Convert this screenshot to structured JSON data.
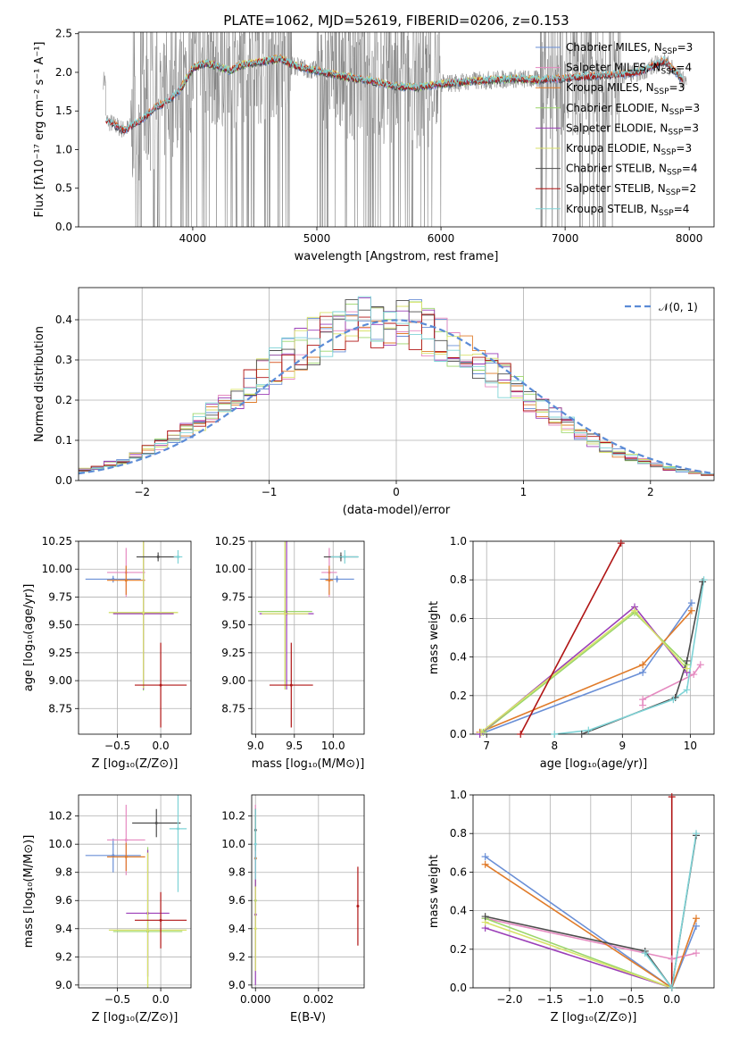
{
  "title": "PLATE=1062, MJD=52619, FIBERID=0206, z=0.153",
  "colors": {
    "Chabrier MILES": "#6a8fd6",
    "Salpeter MILES": "#e58ac0",
    "Kroupa MILES": "#e07b2a",
    "Chabrier ELODIE": "#9bd66a",
    "Salpeter ELODIE": "#9b3fb8",
    "Kroupa ELODIE": "#d8e26a",
    "Chabrier STELIB": "#4d4d4d",
    "Salpeter STELIB": "#b01515",
    "Kroupa STELIB": "#7ed3d6",
    "data": "#808080",
    "normal": "#5b8bd6"
  },
  "legend_models": [
    {
      "label": "Chabrier MILES, N",
      "sub": "SSP",
      "suffix": "=3"
    },
    {
      "label": "Salpeter MILES, N",
      "sub": "SSP",
      "suffix": "=4"
    },
    {
      "label": "Kroupa MILES, N",
      "sub": "SSP",
      "suffix": "=3"
    },
    {
      "label": "Chabrier ELODIE, N",
      "sub": "SSP",
      "suffix": "=3"
    },
    {
      "label": "Salpeter ELODIE, N",
      "sub": "SSP",
      "suffix": "=3"
    },
    {
      "label": "Kroupa ELODIE, N",
      "sub": "SSP",
      "suffix": "=3"
    },
    {
      "label": "Chabrier STELIB, N",
      "sub": "SSP",
      "suffix": "=4"
    },
    {
      "label": "Salpeter STELIB, N",
      "sub": "SSP",
      "suffix": "=2"
    },
    {
      "label": "Kroupa STELIB, N",
      "sub": "SSP",
      "suffix": "=4"
    }
  ],
  "chart_data": [
    {
      "type": "line",
      "panel": "spectrum",
      "xlabel": "wavelength [Angstrom, rest frame]",
      "ylabel": "Flux [fλ10⁻¹⁷ erg cm⁻² s⁻¹ A⁻¹]",
      "xlim": [
        3080,
        8200
      ],
      "ylim": [
        0,
        2.52
      ],
      "xticks": [
        4000,
        5000,
        6000,
        7000,
        8000
      ],
      "yticks": [
        0.0,
        0.5,
        1.0,
        1.5,
        2.0,
        2.5
      ],
      "model_curve": {
        "x": [
          3300,
          3450,
          3600,
          3700,
          3800,
          3900,
          4000,
          4100,
          4200,
          4300,
          4400,
          4500,
          4600,
          4700,
          4800,
          4900,
          5000,
          5200,
          5400,
          5600,
          5800,
          6000,
          6200,
          6400,
          6600,
          6800,
          7000,
          7200,
          7400,
          7600,
          7800,
          7950
        ],
        "y": [
          1.38,
          1.25,
          1.4,
          1.55,
          1.62,
          1.78,
          2.05,
          2.12,
          2.08,
          2.02,
          2.1,
          2.12,
          2.15,
          2.18,
          2.1,
          2.05,
          2.02,
          1.95,
          1.9,
          1.83,
          1.8,
          1.85,
          1.88,
          1.9,
          1.92,
          1.9,
          1.92,
          1.95,
          1.97,
          2.0,
          2.15,
          1.9
        ]
      }
    },
    {
      "type": "line",
      "panel": "residuals",
      "xlabel": "(data-model)/error",
      "ylabel": "Normed distribution",
      "legend": "𝒩(0, 1)",
      "xlim": [
        -2.5,
        2.5
      ],
      "ylim": [
        0,
        0.48
      ],
      "xticks": [
        -2,
        -1,
        0,
        1,
        2
      ],
      "yticks": [
        0.0,
        0.1,
        0.2,
        0.3,
        0.4
      ],
      "bin_width": 0.1
    },
    {
      "type": "scatter",
      "panel": "age-vs-Z",
      "xlabel": "Z [log₁₀(Z/Z⊙)]",
      "ylabel": "age  [log₁₀(age/yr)]",
      "xlim": [
        -0.95,
        0.35
      ],
      "ylim": [
        8.52,
        10.25
      ],
      "xticks": [
        -0.5,
        0.0
      ],
      "yticks": [
        8.75,
        9.0,
        9.25,
        9.5,
        9.75,
        10.0,
        10.25
      ],
      "points": [
        {
          "model": "Chabrier MILES",
          "x": -0.55,
          "xerr": 0.32,
          "y": 9.91,
          "yerr": 0.03
        },
        {
          "model": "Salpeter MILES",
          "x": -0.4,
          "xerr": 0.22,
          "y": 9.97,
          "yerr": 0.22
        },
        {
          "model": "Kroupa MILES",
          "x": -0.4,
          "xerr": 0.22,
          "y": 9.9,
          "yerr": 0.13
        },
        {
          "model": "Chabrier ELODIE",
          "x": -0.2,
          "xerr": 0.4,
          "y": 9.61,
          "yerr": 0.7
        },
        {
          "model": "Salpeter ELODIE",
          "x": -0.2,
          "xerr": 0.35,
          "y": 9.6,
          "yerr": 0.68
        },
        {
          "model": "Kroupa ELODIE",
          "x": -0.2,
          "xerr": 0.4,
          "y": 9.61,
          "yerr": 0.68
        },
        {
          "model": "Chabrier STELIB",
          "x": -0.03,
          "xerr": 0.25,
          "y": 10.11,
          "yerr": 0.04
        },
        {
          "model": "Salpeter STELIB",
          "x": 0.0,
          "xerr": 0.3,
          "y": 8.96,
          "yerr": 0.38
        },
        {
          "model": "Kroupa STELIB",
          "x": 0.2,
          "xerr": 0.05,
          "y": 10.11,
          "yerr": 0.06
        }
      ]
    },
    {
      "type": "scatter",
      "panel": "age-vs-mass",
      "xlabel": "mass [log₁₀(M/M⊙)]",
      "xlim": [
        8.95,
        10.4
      ],
      "ylim": [
        8.52,
        10.25
      ],
      "xticks": [
        9.0,
        9.5,
        10.0
      ],
      "yticks": [
        8.75,
        9.0,
        9.25,
        9.5,
        9.75,
        10.0,
        10.25
      ],
      "points": [
        {
          "model": "Chabrier MILES",
          "x": 10.05,
          "xerr": 0.22,
          "y": 9.91,
          "yerr": 0.03
        },
        {
          "model": "Salpeter MILES",
          "x": 9.95,
          "xerr": 0.1,
          "y": 9.97,
          "yerr": 0.22
        },
        {
          "model": "Kroupa MILES",
          "x": 9.95,
          "xerr": 0.05,
          "y": 9.9,
          "yerr": 0.13
        },
        {
          "model": "Chabrier ELODIE",
          "x": 9.38,
          "xerr": 0.35,
          "y": 9.62,
          "yerr": 0.7
        },
        {
          "model": "Salpeter ELODIE",
          "x": 9.4,
          "xerr": 0.35,
          "y": 9.6,
          "yerr": 0.68
        },
        {
          "model": "Kroupa ELODIE",
          "x": 9.38,
          "xerr": 0.3,
          "y": 9.6,
          "yerr": 0.68
        },
        {
          "model": "Chabrier STELIB",
          "x": 10.1,
          "xerr": 0.22,
          "y": 10.11,
          "yerr": 0.04
        },
        {
          "model": "Salpeter STELIB",
          "x": 9.46,
          "xerr": 0.28,
          "y": 8.96,
          "yerr": 0.38
        },
        {
          "model": "Kroupa STELIB",
          "x": 10.15,
          "xerr": 0.18,
          "y": 10.11,
          "yerr": 0.06
        }
      ]
    },
    {
      "type": "line",
      "panel": "mass-weight-vs-age",
      "xlabel": "age  [log₁₀(age/yr)]",
      "ylabel": "mass weight",
      "xlim": [
        6.8,
        10.35
      ],
      "ylim": [
        0,
        1.0
      ],
      "xticks": [
        7,
        8,
        9,
        10
      ],
      "yticks": [
        0.0,
        0.2,
        0.4,
        0.6,
        0.8,
        1.0
      ],
      "series": [
        {
          "model": "Chabrier MILES",
          "x": [
            6.9,
            9.3,
            10.02
          ],
          "y": [
            0.0,
            0.32,
            0.68
          ]
        },
        {
          "model": "Salpeter MILES",
          "x": [
            9.3,
            9.3,
            10.05,
            10.15
          ],
          "y": [
            0.15,
            0.18,
            0.31,
            0.36
          ]
        },
        {
          "model": "Kroupa MILES",
          "x": [
            6.9,
            9.3,
            10.02
          ],
          "y": [
            0.01,
            0.36,
            0.64
          ]
        },
        {
          "model": "Chabrier ELODIE",
          "x": [
            6.95,
            9.18,
            9.95
          ],
          "y": [
            0.01,
            0.63,
            0.36
          ]
        },
        {
          "model": "Salpeter ELODIE",
          "x": [
            6.9,
            9.18,
            9.95
          ],
          "y": [
            0.0,
            0.66,
            0.32
          ]
        },
        {
          "model": "Kroupa ELODIE",
          "x": [
            6.92,
            9.18,
            9.95
          ],
          "y": [
            0.01,
            0.64,
            0.34
          ]
        },
        {
          "model": "Chabrier STELIB",
          "x": [
            8.4,
            9.78,
            9.95,
            10.18
          ],
          "y": [
            0.0,
            0.19,
            0.38,
            0.79
          ]
        },
        {
          "model": "Salpeter STELIB",
          "x": [
            7.5,
            8.98
          ],
          "y": [
            0.0,
            0.99
          ]
        },
        {
          "model": "Kroupa STELIB",
          "x": [
            8.0,
            8.5,
            9.75,
            9.95,
            10.2
          ],
          "y": [
            0.0,
            0.02,
            0.18,
            0.23,
            0.8
          ]
        }
      ]
    },
    {
      "type": "scatter",
      "panel": "mass-vs-Z",
      "xlabel": "Z [log₁₀(Z/Z⊙)]",
      "ylabel": "mass [log₁₀(M/M⊙)]",
      "xlim": [
        -0.95,
        0.35
      ],
      "ylim": [
        8.98,
        10.35
      ],
      "xticks": [
        -0.5,
        0.0
      ],
      "yticks": [
        9.0,
        9.2,
        9.4,
        9.6,
        9.8,
        10.0,
        10.2
      ],
      "points": [
        {
          "model": "Chabrier MILES",
          "x": -0.55,
          "xerr": 0.32,
          "y": 9.92,
          "yerr": 0.12
        },
        {
          "model": "Salpeter MILES",
          "x": -0.4,
          "xerr": 0.22,
          "y": 10.03,
          "yerr": 0.25
        },
        {
          "model": "Kroupa MILES",
          "x": -0.4,
          "xerr": 0.22,
          "y": 9.91,
          "yerr": 0.1
        },
        {
          "model": "Chabrier ELODIE",
          "x": -0.15,
          "xerr": 0.4,
          "y": 9.38,
          "yerr": 0.6
        },
        {
          "model": "Salpeter ELODIE",
          "x": -0.15,
          "xerr": 0.25,
          "y": 9.51,
          "yerr": 0.45
        },
        {
          "model": "Kroupa ELODIE",
          "x": -0.15,
          "xerr": 0.45,
          "y": 9.39,
          "yerr": 0.55
        },
        {
          "model": "Chabrier STELIB",
          "x": -0.05,
          "xerr": 0.28,
          "y": 10.15,
          "yerr": 0.1
        },
        {
          "model": "Salpeter STELIB",
          "x": 0.0,
          "xerr": 0.3,
          "y": 9.46,
          "yerr": 0.2
        },
        {
          "model": "Kroupa STELIB",
          "x": 0.2,
          "xerr": 0.1,
          "y": 10.11,
          "yerr": 0.45
        }
      ]
    },
    {
      "type": "scatter",
      "panel": "mass-vs-EBV",
      "xlabel": "E(B-V)",
      "xlim": [
        -0.00012,
        0.00345
      ],
      "ylim": [
        8.98,
        10.35
      ],
      "xticks": [
        0.0,
        0.002
      ],
      "yticks": [
        9.0,
        9.2,
        9.4,
        9.6,
        9.8,
        10.0,
        10.2
      ],
      "points": [
        {
          "model": "Chabrier MILES",
          "x": 0.0,
          "y": 9.9,
          "yerr": 0.35
        },
        {
          "model": "Salpeter MILES",
          "x": 0.0,
          "y": 10.0,
          "yerr": 0.28
        },
        {
          "model": "Kroupa MILES",
          "x": 0.0,
          "y": 9.9,
          "yerr": 0.3
        },
        {
          "model": "Chabrier ELODIE",
          "x": 0.0,
          "y": 9.6,
          "yerr": 0.5
        },
        {
          "model": "Salpeter ELODIE",
          "x": 0.0,
          "y": 9.5,
          "yerr": 0.5
        },
        {
          "model": "Kroupa ELODIE",
          "x": 0.0,
          "y": 9.4,
          "yerr": 0.3
        },
        {
          "model": "Chabrier STELIB",
          "x": 0.0,
          "y": 10.1,
          "yerr": 0.15
        },
        {
          "model": "Salpeter STELIB",
          "x": 0.00325,
          "y": 9.56,
          "yerr": 0.28
        },
        {
          "model": "Kroupa STELIB",
          "x": 0.0,
          "y": 10.0,
          "yerr": 0.25
        }
      ]
    },
    {
      "type": "line",
      "panel": "mass-weight-vs-Z",
      "xlabel": "Z [log₁₀(Z/Z⊙)]",
      "ylabel": "mass weight",
      "xlim": [
        -2.45,
        0.52
      ],
      "ylim": [
        0,
        1.0
      ],
      "xticks": [
        -2.0,
        -1.5,
        -1.0,
        -0.5,
        0.0
      ],
      "yticks": [
        0.0,
        0.2,
        0.4,
        0.6,
        0.8,
        1.0
      ],
      "series": [
        {
          "model": "Chabrier MILES",
          "x": [
            -2.3,
            0.0,
            0.3
          ],
          "y": [
            0.68,
            0.0,
            0.32
          ]
        },
        {
          "model": "Salpeter MILES",
          "x": [
            -2.3,
            0.0,
            0.3
          ],
          "y": [
            0.36,
            0.15,
            0.18
          ]
        },
        {
          "model": "Kroupa MILES",
          "x": [
            -2.3,
            0.0,
            0.3
          ],
          "y": [
            0.64,
            0.0,
            0.36
          ]
        },
        {
          "model": "Chabrier ELODIE",
          "x": [
            -2.3,
            0.0
          ],
          "y": [
            0.36,
            0.0
          ]
        },
        {
          "model": "Salpeter ELODIE",
          "x": [
            -2.3,
            0.0
          ],
          "y": [
            0.31,
            0.0
          ]
        },
        {
          "model": "Kroupa ELODIE",
          "x": [
            -2.3,
            0.0
          ],
          "y": [
            0.34,
            0.0
          ]
        },
        {
          "model": "Chabrier STELIB",
          "x": [
            -2.3,
            -0.33,
            0.0,
            0.3
          ],
          "y": [
            0.37,
            0.19,
            0.0,
            0.79
          ]
        },
        {
          "model": "Salpeter STELIB",
          "x": [
            0.0,
            0.0
          ],
          "y": [
            0.0,
            0.99
          ]
        },
        {
          "model": "Kroupa STELIB",
          "x": [
            -0.33,
            0.0,
            0.3
          ],
          "y": [
            0.18,
            0.0,
            0.8
          ]
        }
      ]
    }
  ]
}
